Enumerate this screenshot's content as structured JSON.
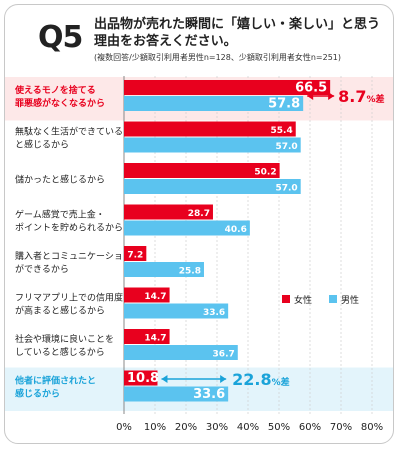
{
  "header": {
    "question_label": "Q5",
    "title": "出品物が売れた瞬間に「嬉しい・楽しい」と思う理由をお答えください。",
    "note": "(複数回答/少額取引利用者男性n=128、少額取引利用者女性n=251)"
  },
  "colors": {
    "female": "#e8001e",
    "male": "#5bc3ef",
    "highlight_red_bg": "#fde8e8",
    "highlight_blue_bg": "#e3f4fb",
    "red_text": "#e8001e",
    "blue_text": "#1aa3d9",
    "label_text": "#222222"
  },
  "chart_data": {
    "type": "bar",
    "orientation": "horizontal",
    "categories": [
      [
        "使えるモノを捨てる",
        "罪悪感がなくなるから"
      ],
      [
        "無駄なく生活ができている",
        "と感じるから"
      ],
      [
        "儲かったと感じるから"
      ],
      [
        "ゲーム感覚で売上金・",
        "ポイントを貯められるから"
      ],
      [
        "購入者とコミュニケーション",
        "ができるから"
      ],
      [
        "フリマアプリ上での信用度",
        "が高まると感じるから"
      ],
      [
        "社会や環境に良いことを",
        "していると感じるから"
      ],
      [
        "他者に評価されたと",
        "感じるから"
      ]
    ],
    "series": [
      {
        "name": "女性",
        "values": [
          66.5,
          55.4,
          50.2,
          28.7,
          7.2,
          14.7,
          14.7,
          10.8
        ]
      },
      {
        "name": "男性",
        "values": [
          57.8,
          57.0,
          57.0,
          40.6,
          25.8,
          33.6,
          36.7,
          33.6
        ]
      }
    ],
    "x_ticks": [
      "0%",
      "10%",
      "20%",
      "30%",
      "40%",
      "50%",
      "60%",
      "70%",
      "80%"
    ],
    "xlim": [
      0,
      80
    ],
    "grid": true,
    "legend_position": "right",
    "highlight_rows": [
      0,
      7
    ],
    "annotations": [
      {
        "row": 0,
        "number": "8.7",
        "unit": "%差",
        "color": "red"
      },
      {
        "row": 7,
        "number": "22.8",
        "unit": "%差",
        "color": "blue"
      }
    ]
  }
}
